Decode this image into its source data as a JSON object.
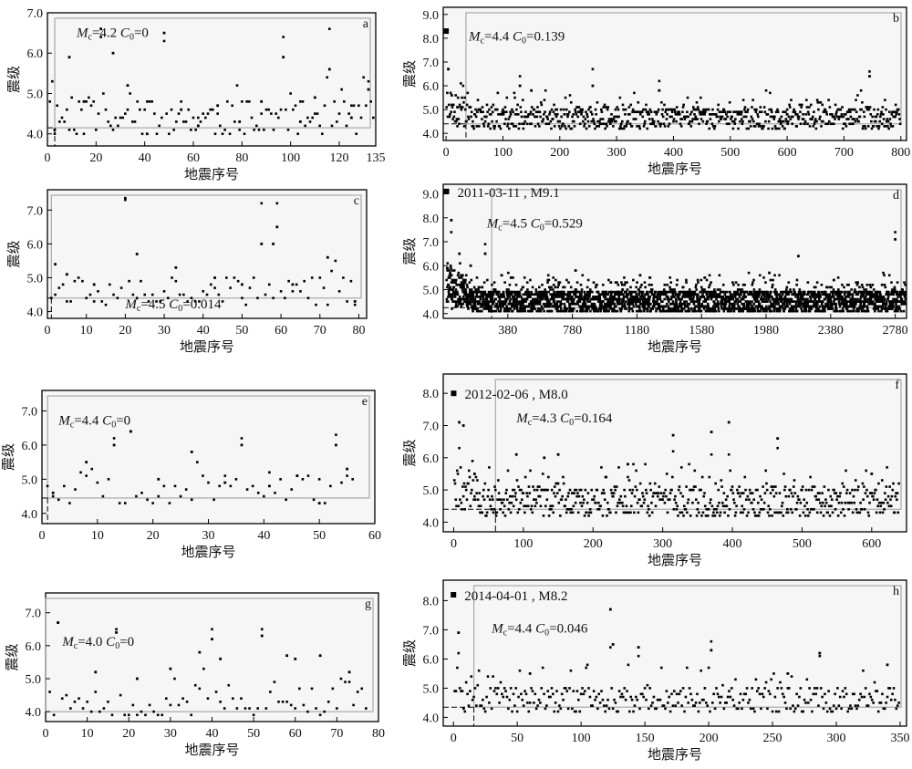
{
  "chart_data": [
    {
      "type": "scatter",
      "panel": "a",
      "xlabel": "地震序号",
      "ylabel": "震级",
      "xlim": [
        0,
        135
      ],
      "ylim": [
        3.7,
        7.0
      ],
      "xticks": [
        0,
        20,
        40,
        60,
        80,
        100,
        120,
        135
      ],
      "yticks": [
        4.0,
        5.0,
        6.0,
        7.0
      ],
      "mc_value": "4.2",
      "c0_value": "0",
      "mc_line": 4.15,
      "cut_index": 3,
      "ymax_event": 6.6,
      "seed": 11,
      "n_events": 135,
      "peak_indices": [
        22,
        48,
        97,
        116
      ],
      "annotation_anchor": [
        12,
        6.4
      ],
      "series": [
        {
          "x": [
            3,
            9,
            15,
            22,
            27,
            33,
            41,
            48,
            55,
            62,
            70,
            79,
            88,
            97,
            104,
            110,
            116,
            125,
            132
          ],
          "y": [
            4.1,
            5.9,
            4.8,
            6.6,
            6.0,
            5.2,
            4.0,
            6.5,
            4.6,
            4.2,
            4.7,
            4.3,
            4.8,
            5.9,
            4.3,
            4.9,
            5.6,
            4.4,
            5.1
          ]
        }
      ]
    },
    {
      "type": "scatter",
      "panel": "b",
      "xlabel": "地震序号",
      "ylabel": "震级",
      "xlim": [
        -5,
        810
      ],
      "ylim": [
        3.7,
        9.3
      ],
      "xticks": [
        0,
        100,
        200,
        300,
        400,
        500,
        600,
        700,
        800
      ],
      "yticks": [
        4.0,
        5.0,
        6.0,
        7.0,
        8.0,
        9.0
      ],
      "mc_value": "4.4",
      "c0_value": "0.139",
      "mc_line": 4.4,
      "cut_index": 35,
      "mainshock": {
        "x": 0,
        "y": 8.3
      },
      "seed": 23,
      "n_events": 800,
      "peak_indices": [
        4,
        130,
        258,
        375,
        745
      ],
      "annotation_anchor": [
        40,
        7.9
      ],
      "series": [
        {
          "x": [
            0,
            4,
            10,
            20,
            60,
            130,
            150,
            258,
            375,
            440,
            520,
            600,
            745,
            790
          ],
          "y": [
            8.3,
            6.7,
            5.6,
            5.1,
            5.0,
            6.0,
            5.8,
            6.0,
            5.8,
            5.0,
            4.9,
            4.8,
            6.4,
            4.7
          ]
        }
      ]
    },
    {
      "type": "scatter",
      "panel": "c",
      "xlabel": "地震序号",
      "ylabel": "震级",
      "xlim": [
        0,
        82
      ],
      "ylim": [
        3.8,
        7.6
      ],
      "xticks": [
        0,
        10,
        20,
        30,
        40,
        50,
        60,
        70,
        80
      ],
      "yticks": [
        4.0,
        5.0,
        6.0,
        7.0
      ],
      "mc_value": "4.5",
      "c0_value": "0.014",
      "mc_line": 4.4,
      "cut_index": 1,
      "ymax_event": 7.35,
      "seed": 37,
      "n_events": 80,
      "peak_indices": [
        20,
        55,
        59
      ],
      "annotation_anchor": [
        20,
        4.1
      ],
      "series": [
        {
          "x": [
            2,
            5,
            12,
            20,
            23,
            33,
            43,
            50,
            55,
            58,
            59,
            63,
            72,
            79
          ],
          "y": [
            5.4,
            5.1,
            4.8,
            7.35,
            5.7,
            5.3,
            5.0,
            4.8,
            6.0,
            6.0,
            6.5,
            4.8,
            5.6,
            4.3
          ]
        }
      ]
    },
    {
      "type": "scatter",
      "panel": "d",
      "xlabel": "地震序号",
      "ylabel": "震级",
      "xlim": [
        -20,
        2850
      ],
      "ylim": [
        3.8,
        9.4
      ],
      "xticks": [
        380,
        780,
        1180,
        1580,
        1980,
        2380,
        2780
      ],
      "yticks": [
        4.0,
        5.0,
        6.0,
        7.0,
        8.0,
        9.0
      ],
      "mc_value": "4.5",
      "c0_value": "0.529",
      "mc_line": 4.25,
      "cut_index": 280,
      "mainshock": {
        "x": 0,
        "y": 9.1,
        "label": "2011-03-11 , M9.1"
      },
      "seed": 41,
      "n_events": 2850,
      "peak_indices": [
        30,
        240,
        2780
      ],
      "annotation_anchor": [
        250,
        7.6
      ],
      "series": [
        {
          "x": [
            0,
            30,
            80,
            150,
            240,
            400,
            800,
            1200,
            1600,
            2000,
            2180,
            2400,
            2780
          ],
          "y": [
            9.1,
            7.9,
            6.5,
            6.0,
            6.5,
            5.5,
            5.8,
            5.6,
            5.5,
            5.7,
            6.4,
            5.4,
            7.1
          ]
        }
      ]
    },
    {
      "type": "scatter",
      "panel": "e",
      "xlabel": "地震序号",
      "ylabel": "震级",
      "xlim": [
        0,
        60
      ],
      "ylim": [
        3.7,
        7.6
      ],
      "xticks": [
        0,
        10,
        20,
        30,
        40,
        50,
        60
      ],
      "yticks": [
        4.0,
        5.0,
        6.0,
        7.0
      ],
      "mc_value": "4.4",
      "c0_value": "0",
      "mc_line": 4.45,
      "cut_index": 1,
      "ymax_event": 6.4,
      "seed": 53,
      "n_events": 57,
      "peak_indices": [
        13,
        16,
        36,
        53
      ],
      "annotation_anchor": [
        3,
        6.6
      ],
      "series": [
        {
          "x": [
            2,
            8,
            13,
            16,
            21,
            27,
            33,
            36,
            41,
            46,
            50,
            53,
            55
          ],
          "y": [
            4.6,
            5.5,
            6.0,
            6.4,
            5.0,
            5.8,
            4.9,
            6.0,
            4.8,
            5.1,
            4.3,
            6.0,
            5.3
          ]
        }
      ]
    },
    {
      "type": "scatter",
      "panel": "f",
      "xlabel": "地震序号",
      "ylabel": "震级",
      "xlim": [
        -15,
        650
      ],
      "ylim": [
        3.7,
        8.6
      ],
      "xticks": [
        0,
        100,
        200,
        300,
        400,
        500,
        600
      ],
      "yticks": [
        4.0,
        5.0,
        6.0,
        7.0,
        8.0
      ],
      "mc_value": "4.3",
      "c0_value": "0.164",
      "mc_line": 4.4,
      "cut_index": 60,
      "mainshock": {
        "x": 0,
        "y": 8.0,
        "label": "2012-02-06 , M8.0"
      },
      "seed": 67,
      "n_events": 640,
      "peak_indices": [
        8,
        315,
        370,
        395,
        465
      ],
      "annotation_anchor": [
        90,
        7.1
      ],
      "series": [
        {
          "x": [
            0,
            8,
            14,
            30,
            90,
            130,
            150,
            250,
            315,
            370,
            395,
            465,
            600
          ],
          "y": [
            8.0,
            7.1,
            7.0,
            5.5,
            6.1,
            6.0,
            6.1,
            5.8,
            6.7,
            6.8,
            7.1,
            6.6,
            5.5
          ]
        }
      ]
    },
    {
      "type": "scatter",
      "panel": "g",
      "xlabel": "地震序号",
      "ylabel": "震级",
      "xlim": [
        0,
        80
      ],
      "ylim": [
        3.7,
        7.6
      ],
      "xticks": [
        0,
        10,
        20,
        30,
        40,
        50,
        60,
        70,
        80
      ],
      "yticks": [
        4.0,
        5.0,
        6.0,
        7.0
      ],
      "mc_value": "4.0",
      "c0_value": "0",
      "mc_line": 4.0,
      "cut_index": 0,
      "ymax_event": 6.7,
      "seed": 79,
      "n_events": 78,
      "peak_indices": [
        3,
        17,
        40,
        52
      ],
      "annotation_anchor": [
        4,
        6.0
      ],
      "series": [
        {
          "x": [
            3,
            12,
            17,
            22,
            30,
            37,
            40,
            42,
            52,
            58,
            60,
            66,
            73
          ],
          "y": [
            6.7,
            5.2,
            6.4,
            5.0,
            5.3,
            5.8,
            6.2,
            5.6,
            6.3,
            5.7,
            5.6,
            5.7,
            5.2
          ]
        }
      ]
    },
    {
      "type": "scatter",
      "panel": "h",
      "xlabel": "地震序号",
      "ylabel": "震级",
      "xlim": [
        -8,
        355
      ],
      "ylim": [
        3.7,
        8.7
      ],
      "xticks": [
        0,
        50,
        100,
        150,
        200,
        250,
        300,
        350
      ],
      "yticks": [
        4.0,
        5.0,
        6.0,
        7.0,
        8.0
      ],
      "mc_value": "4.4",
      "c0_value": "0.046",
      "mc_line": 4.35,
      "cut_index": 16,
      "mainshock": {
        "x": 0,
        "y": 8.2,
        "label": "2014-04-01 , M8.2"
      },
      "seed": 97,
      "n_events": 350,
      "peak_indices": [
        4,
        123,
        145,
        202,
        287
      ],
      "annotation_anchor": [
        30,
        6.9
      ],
      "series": [
        {
          "x": [
            0,
            4,
            60,
            123,
            125,
            145,
            202,
            262,
            287,
            340
          ],
          "y": [
            8.2,
            6.9,
            5.5,
            7.7,
            6.5,
            6.4,
            6.3,
            5.5,
            6.2,
            5.8
          ]
        }
      ]
    }
  ]
}
